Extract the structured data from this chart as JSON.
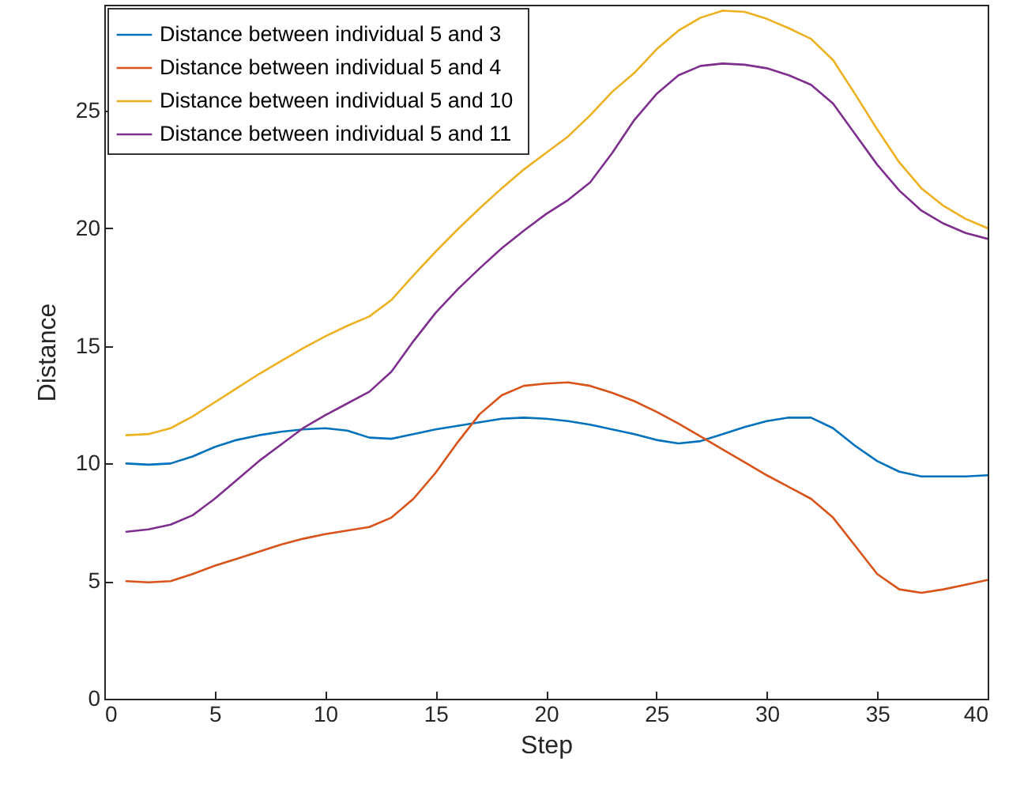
{
  "chart_data": {
    "type": "line",
    "xlabel": "Step",
    "ylabel": "Distance",
    "xlim": [
      0,
      40
    ],
    "xticks": [
      0,
      5,
      10,
      15,
      20,
      25,
      30,
      35,
      40
    ],
    "ylim": [
      0,
      29.5
    ],
    "yticks": [
      0,
      5,
      10,
      15,
      20,
      25
    ],
    "grid": false,
    "legend": "top left",
    "line_style": "solid",
    "marker": "none",
    "x": [
      1,
      2,
      3,
      4,
      5,
      6,
      7,
      8,
      9,
      10,
      11,
      12,
      13,
      14,
      15,
      16,
      17,
      18,
      19,
      20,
      21,
      22,
      23,
      24,
      25,
      26,
      27,
      28,
      29,
      30,
      31,
      32,
      33,
      34,
      35,
      36,
      37,
      38,
      39,
      40
    ],
    "series": [
      {
        "name": "Distance between individual 5 and  3",
        "color": "#0072bd",
        "values": [
          10.0,
          9.95,
          10.0,
          10.3,
          10.7,
          11.0,
          11.2,
          11.35,
          11.45,
          11.5,
          11.4,
          11.1,
          11.05,
          11.25,
          11.45,
          11.6,
          11.75,
          11.9,
          11.95,
          11.9,
          11.8,
          11.65,
          11.45,
          11.25,
          11.0,
          10.85,
          10.95,
          11.25,
          11.55,
          11.8,
          11.95,
          11.95,
          11.5,
          10.75,
          10.1,
          9.65,
          9.45,
          9.45,
          9.45,
          9.5
        ]
      },
      {
        "name": "Distance between individual 5 and  4",
        "color": "#d95319",
        "values": [
          5.0,
          4.95,
          5.0,
          5.3,
          5.65,
          5.95,
          6.25,
          6.55,
          6.8,
          7.0,
          7.15,
          7.3,
          7.7,
          8.5,
          9.6,
          10.9,
          12.1,
          12.9,
          13.3,
          13.4,
          13.45,
          13.3,
          13.0,
          12.65,
          12.2,
          11.7,
          11.15,
          10.6,
          10.05,
          9.5,
          9.0,
          8.5,
          7.7,
          6.5,
          5.3,
          4.65,
          4.5,
          4.65,
          4.85,
          5.05
        ]
      },
      {
        "name": "Distance between individual 5 and  10",
        "color": "#edb120",
        "values": [
          11.2,
          11.25,
          11.5,
          12.0,
          12.6,
          13.2,
          13.8,
          14.35,
          14.9,
          15.4,
          15.85,
          16.25,
          16.95,
          18.0,
          19.0,
          19.95,
          20.85,
          21.7,
          22.5,
          23.2,
          23.9,
          24.8,
          25.8,
          26.6,
          27.6,
          28.4,
          28.95,
          29.25,
          29.2,
          28.9,
          28.5,
          28.05,
          27.15,
          25.7,
          24.2,
          22.8,
          21.7,
          20.95,
          20.4,
          20.0
        ]
      },
      {
        "name": "Distance between individual 5 and 11",
        "color": "#7e2f8e",
        "values": [
          7.1,
          7.2,
          7.4,
          7.8,
          8.5,
          9.3,
          10.1,
          10.8,
          11.5,
          12.05,
          12.55,
          13.05,
          13.9,
          15.2,
          16.4,
          17.4,
          18.3,
          19.15,
          19.9,
          20.6,
          21.2,
          21.95,
          23.2,
          24.6,
          25.7,
          26.5,
          26.9,
          27.0,
          26.95,
          26.8,
          26.5,
          26.1,
          25.3,
          24.0,
          22.7,
          21.6,
          20.75,
          20.2,
          19.8,
          19.55
        ]
      }
    ]
  }
}
